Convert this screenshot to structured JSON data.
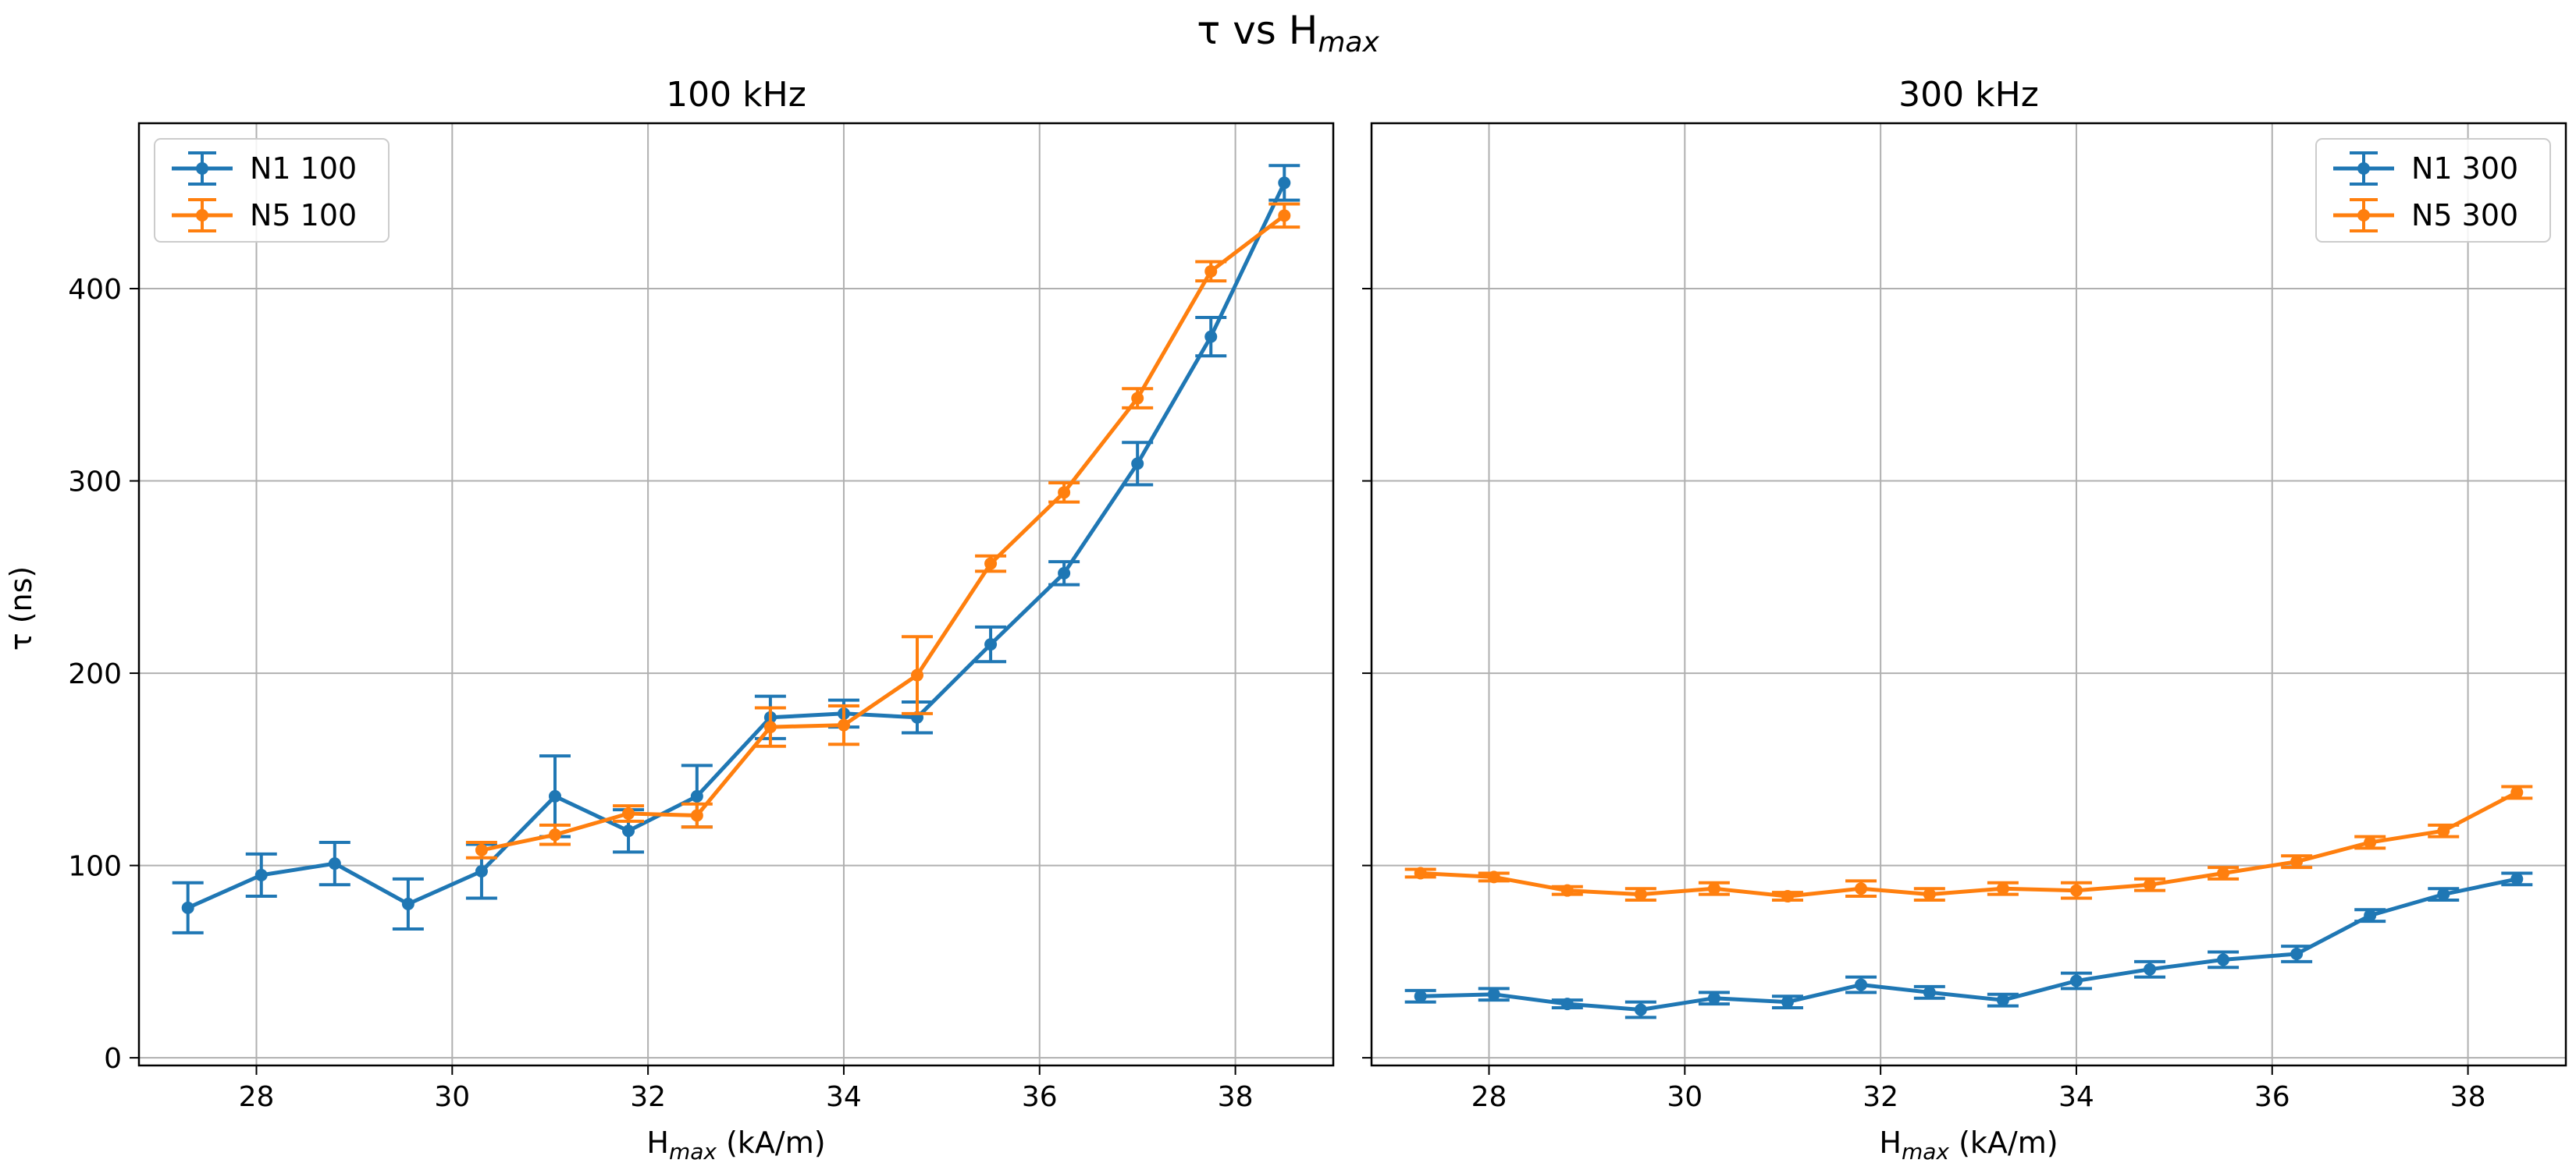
{
  "figure": {
    "title_main": "τ vs H",
    "title_sub": "max"
  },
  "shared_ylabel": "τ (ns)",
  "xlabel_main": "H",
  "xlabel_sub": "max",
  "xlabel_tail": " (kA/m)",
  "colors": {
    "blue": "#1f77b4",
    "orange": "#ff7f0e",
    "grid": "#b0b0b0"
  },
  "chart_data": [
    {
      "type": "line",
      "title": "100 kHz",
      "legend_position": "top-left",
      "grid": true,
      "xlim": [
        26.8,
        39.0
      ],
      "ylim": [
        -4,
        486
      ],
      "xticks": [
        28,
        30,
        32,
        34,
        36,
        38
      ],
      "yticks": [
        0,
        100,
        200,
        300,
        400
      ],
      "series": [
        {
          "name": "N1 100",
          "color": "#1f77b4",
          "x": [
            27.3,
            28.05,
            28.8,
            29.55,
            30.3,
            31.05,
            31.8,
            32.5,
            33.25,
            34.0,
            34.75,
            35.5,
            36.25,
            37.0,
            37.75,
            38.5
          ],
          "y": [
            78,
            95,
            101,
            80,
            97,
            136,
            118,
            136,
            177,
            179,
            177,
            215,
            252,
            309,
            375,
            455
          ],
          "err": [
            13,
            11,
            11,
            13,
            14,
            21,
            11,
            16,
            11,
            7,
            8,
            9,
            6,
            11,
            10,
            9
          ]
        },
        {
          "name": "N5 100",
          "color": "#ff7f0e",
          "x": [
            30.3,
            31.05,
            31.8,
            32.5,
            33.25,
            34.0,
            34.75,
            35.5,
            36.25,
            37.0,
            37.75,
            38.5
          ],
          "y": [
            108,
            116,
            127,
            126,
            172,
            173,
            199,
            257,
            294,
            343,
            409,
            438
          ],
          "err": [
            4,
            5,
            4,
            6,
            10,
            10,
            20,
            4,
            5,
            5,
            5,
            6
          ]
        }
      ]
    },
    {
      "type": "line",
      "title": "300 kHz",
      "legend_position": "top-right",
      "grid": true,
      "xlim": [
        26.8,
        39.0
      ],
      "ylim": [
        -4,
        486
      ],
      "xticks": [
        28,
        30,
        32,
        34,
        36,
        38
      ],
      "yticks": [
        0,
        100,
        200,
        300,
        400
      ],
      "series": [
        {
          "name": "N1 300",
          "color": "#1f77b4",
          "x": [
            27.3,
            28.05,
            28.8,
            29.55,
            30.3,
            31.05,
            31.8,
            32.5,
            33.25,
            34.0,
            34.75,
            35.5,
            36.25,
            37.0,
            37.75,
            38.5
          ],
          "y": [
            32,
            33,
            28,
            25,
            31,
            29,
            38,
            34,
            30,
            40,
            46,
            51,
            54,
            74,
            85,
            93
          ],
          "err": [
            3,
            3,
            2,
            4,
            3,
            3,
            4,
            3,
            3,
            4,
            4,
            4,
            4,
            3,
            3,
            3
          ]
        },
        {
          "name": "N5 300",
          "color": "#ff7f0e",
          "x": [
            27.3,
            28.05,
            28.8,
            29.55,
            30.3,
            31.05,
            31.8,
            32.5,
            33.25,
            34.0,
            34.75,
            35.5,
            36.25,
            37.0,
            37.75,
            38.5
          ],
          "y": [
            96,
            94,
            87,
            85,
            88,
            84,
            88,
            85,
            88,
            87,
            90,
            96,
            102,
            112,
            118,
            138
          ],
          "err": [
            2,
            2,
            2,
            3,
            3,
            2,
            4,
            3,
            3,
            4,
            3,
            3,
            3,
            3,
            3,
            3
          ]
        }
      ]
    }
  ]
}
